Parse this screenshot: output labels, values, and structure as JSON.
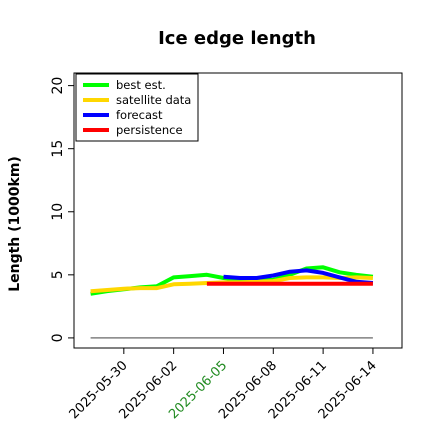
{
  "chart_data": {
    "type": "line",
    "title": "Ice edge length",
    "xlabel": "",
    "ylabel": "Length (1000km)",
    "ylim": [
      -0.8,
      21
    ],
    "xlim": [
      "2025-05-27T00:00",
      "2025-06-15T18:00"
    ],
    "yticks": [
      0,
      5,
      10,
      15,
      20
    ],
    "ytick_labels": [
      "0",
      "5",
      "10",
      "15",
      "20"
    ],
    "xticks": [
      "2025-05-30",
      "2025-06-02",
      "2025-06-05",
      "2025-06-08",
      "2025-06-11",
      "2025-06-14"
    ],
    "xtick_labels": [
      "2025-05-30",
      "2025-06-02",
      "2025-06-05",
      "2025-06-08",
      "2025-06-11",
      "2025-06-14"
    ],
    "highlighted_xtick": "2025-06-05",
    "highlight_color": "#228b22",
    "grid": false,
    "legend_position": "top-left",
    "series": [
      {
        "name": "best est.",
        "color": "#00ff00",
        "x": [
          "2025-05-28",
          "2025-05-29",
          "2025-05-30",
          "2025-05-31",
          "2025-06-01",
          "2025-06-02",
          "2025-06-03",
          "2025-06-04",
          "2025-06-05",
          "2025-06-06",
          "2025-06-07",
          "2025-06-08",
          "2025-06-09",
          "2025-06-10",
          "2025-06-11",
          "2025-06-12",
          "2025-06-13",
          "2025-06-14"
        ],
        "values": [
          3.5,
          3.7,
          3.85,
          4.0,
          4.1,
          4.8,
          4.9,
          5.0,
          4.75,
          4.6,
          4.55,
          4.6,
          5.0,
          5.5,
          5.6,
          5.2,
          5.0,
          4.85
        ]
      },
      {
        "name": "satellite data",
        "color": "#ffd700",
        "x": [
          "2025-05-28",
          "2025-05-29",
          "2025-05-30",
          "2025-05-31",
          "2025-06-01",
          "2025-06-02",
          "2025-06-03",
          "2025-06-04",
          "2025-06-05",
          "2025-06-06",
          "2025-06-07",
          "2025-06-08",
          "2025-06-09",
          "2025-06-10",
          "2025-06-11",
          "2025-06-12",
          "2025-06-13",
          "2025-06-14"
        ],
        "values": [
          3.7,
          3.8,
          3.9,
          3.95,
          3.95,
          4.25,
          4.3,
          4.35,
          4.4,
          4.4,
          4.45,
          4.5,
          4.75,
          4.8,
          4.8,
          4.75,
          4.8,
          4.75
        ]
      },
      {
        "name": "forecast",
        "color": "#0000ff",
        "x": [
          "2025-06-05",
          "2025-06-06",
          "2025-06-07",
          "2025-06-08",
          "2025-06-09",
          "2025-06-10",
          "2025-06-11",
          "2025-06-12",
          "2025-06-13",
          "2025-06-14"
        ],
        "values": [
          4.85,
          4.75,
          4.75,
          4.95,
          5.25,
          5.35,
          5.15,
          4.8,
          4.45,
          4.35
        ]
      },
      {
        "name": "persistence",
        "color": "#ff0000",
        "x": [
          "2025-06-04",
          "2025-06-14"
        ],
        "values": [
          4.3,
          4.3
        ]
      },
      {
        "name": "",
        "color": "#808080",
        "x": [
          "2025-05-28",
          "2025-06-14"
        ],
        "values": [
          0,
          0
        ]
      }
    ]
  }
}
